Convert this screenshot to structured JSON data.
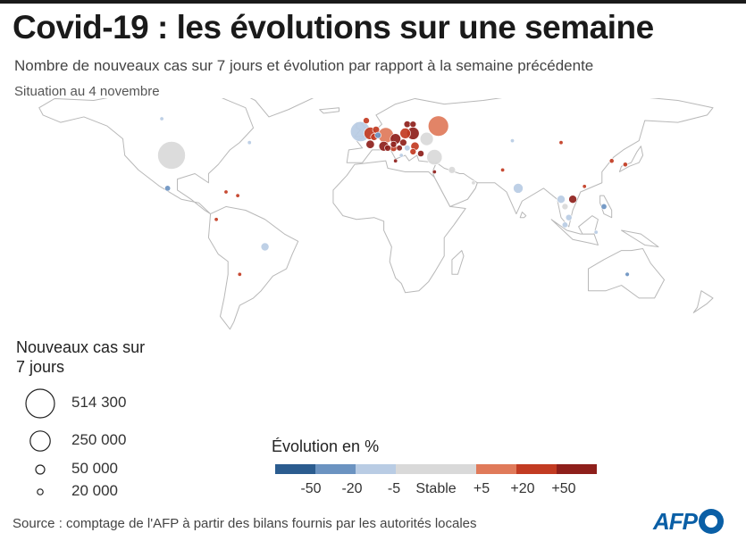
{
  "header": {
    "title": "Covid-19 : les évolutions sur une semaine",
    "subtitle": "Nombre de nouveaux cas sur 7 jours et évolution par rapport à la semaine précédente",
    "date": "Situation au 4 novembre"
  },
  "size_legend": {
    "title": "Nouveaux cas sur 7 jours",
    "items": [
      {
        "label": "514 300",
        "value": 514300
      },
      {
        "label": "250 000",
        "value": 250000
      },
      {
        "label": "50 000",
        "value": 50000
      },
      {
        "label": "20 000",
        "value": 20000
      }
    ]
  },
  "evolution_legend": {
    "title": "Évolution en %",
    "colors": [
      "#2b5c8f",
      "#6b93c1",
      "#b9cce4",
      "#d9d9d9",
      "#e07a5a",
      "#c23b22",
      "#8e1f1b"
    ],
    "labels": [
      "-50",
      "-20",
      "-5",
      "Stable",
      "+5",
      "+20",
      "+50"
    ]
  },
  "map": {
    "colors": {
      "land": "#ffffff",
      "border": "#b8b8b8"
    },
    "bubble_scale": {
      "max_value": 514300
    },
    "bubbles": [
      {
        "lon": -100,
        "lat": 40,
        "value": 480000,
        "cls": 3
      },
      {
        "lon": 37,
        "lat": 56,
        "value": 260000,
        "cls": 4
      },
      {
        "lon": -3,
        "lat": 53,
        "value": 250000,
        "cls": 2
      },
      {
        "lon": 10,
        "lat": 51,
        "value": 150000,
        "cls": 4
      },
      {
        "lon": 2,
        "lat": 52,
        "value": 95000,
        "cls": 5
      },
      {
        "lon": 24,
        "lat": 52,
        "value": 95000,
        "cls": 6
      },
      {
        "lon": 20,
        "lat": 52,
        "value": 70000,
        "cls": 5
      },
      {
        "lon": 15,
        "lat": 49,
        "value": 70000,
        "cls": 6
      },
      {
        "lon": 31,
        "lat": 49,
        "value": 110000,
        "cls": 3
      },
      {
        "lon": 35,
        "lat": 39,
        "value": 150000,
        "cls": 3
      },
      {
        "lon": 9,
        "lat": 45,
        "value": 60000,
        "cls": 6
      },
      {
        "lon": 2,
        "lat": 46,
        "value": 45000,
        "cls": 6
      },
      {
        "lon": 25,
        "lat": 45,
        "value": 45000,
        "cls": 5
      },
      {
        "lon": 19,
        "lat": 47,
        "value": 30000,
        "cls": 6
      },
      {
        "lon": 14,
        "lat": 44,
        "value": 30000,
        "cls": 5
      },
      {
        "lon": 4,
        "lat": 50,
        "value": 30000,
        "cls": 5
      },
      {
        "lon": 5,
        "lat": 54,
        "value": 30000,
        "cls": 5
      },
      {
        "lon": 21,
        "lat": 57,
        "value": 28000,
        "cls": 6
      },
      {
        "lon": 28,
        "lat": 41,
        "value": 26000,
        "cls": 6
      },
      {
        "lon": 14,
        "lat": 46,
        "value": 25000,
        "cls": 6
      },
      {
        "lon": 11,
        "lat": 44,
        "value": 25000,
        "cls": 6
      },
      {
        "lon": 24,
        "lat": 57,
        "value": 25000,
        "cls": 6
      },
      {
        "lon": 0,
        "lat": 59,
        "value": 25000,
        "cls": 5
      },
      {
        "lon": 24,
        "lat": 42,
        "value": 25000,
        "cls": 5
      },
      {
        "lon": 6,
        "lat": 51,
        "value": 25000,
        "cls": 1
      },
      {
        "lon": 21,
        "lat": 44,
        "value": 22000,
        "cls": 2
      },
      {
        "lon": 17,
        "lat": 44,
        "value": 22000,
        "cls": 6
      },
      {
        "lon": 44,
        "lat": 32,
        "value": 30000,
        "cls": 3
      },
      {
        "lon": 78,
        "lat": 22,
        "value": 60000,
        "cls": 2
      },
      {
        "lon": 100,
        "lat": 16,
        "value": 40000,
        "cls": 2
      },
      {
        "lon": 106,
        "lat": 16,
        "value": 40000,
        "cls": 6
      },
      {
        "lon": 102,
        "lat": 12,
        "value": 25000,
        "cls": 3
      },
      {
        "lon": 104,
        "lat": 6,
        "value": 25000,
        "cls": 2
      },
      {
        "lon": 102,
        "lat": 2,
        "value": 20000,
        "cls": 2
      },
      {
        "lon": 122,
        "lat": 12,
        "value": 20000,
        "cls": 1
      },
      {
        "lon": -52,
        "lat": -10,
        "value": 40000,
        "cls": 2
      },
      {
        "lon": -102,
        "lat": 22,
        "value": 20000,
        "cls": 1
      },
      {
        "lon": 134,
        "lat": -25,
        "value": 12000,
        "cls": 1
      },
      {
        "lon": 126,
        "lat": 37,
        "value": 14000,
        "cls": 5
      },
      {
        "lon": 133,
        "lat": 35,
        "value": 14000,
        "cls": 5
      },
      {
        "lon": 112,
        "lat": 23,
        "value": 9000,
        "cls": 5
      },
      {
        "lon": -72,
        "lat": 20,
        "value": 8000,
        "cls": 5
      },
      {
        "lon": -66,
        "lat": 18,
        "value": 8000,
        "cls": 5
      },
      {
        "lon": -77,
        "lat": 5,
        "value": 8000,
        "cls": 5
      },
      {
        "lon": -60,
        "lat": 47,
        "value": 8000,
        "cls": 2
      },
      {
        "lon": -105,
        "lat": 60,
        "value": 8000,
        "cls": 2
      },
      {
        "lon": 70,
        "lat": 32,
        "value": 8000,
        "cls": 5
      },
      {
        "lon": 55,
        "lat": 25,
        "value": 8000,
        "cls": 3
      },
      {
        "lon": 75,
        "lat": 48,
        "value": 6000,
        "cls": 2
      },
      {
        "lon": 100,
        "lat": 47,
        "value": 6000,
        "cls": 5
      },
      {
        "lon": 35,
        "lat": 31,
        "value": 9000,
        "cls": 6
      },
      {
        "lon": 118,
        "lat": -2,
        "value": 8000,
        "cls": 2
      },
      {
        "lon": -65,
        "lat": -25,
        "value": 7000,
        "cls": 5
      },
      {
        "lon": 18,
        "lat": 40,
        "value": 7000,
        "cls": 2
      },
      {
        "lon": 15,
        "lat": 37,
        "value": 6000,
        "cls": 6
      }
    ]
  }
}
